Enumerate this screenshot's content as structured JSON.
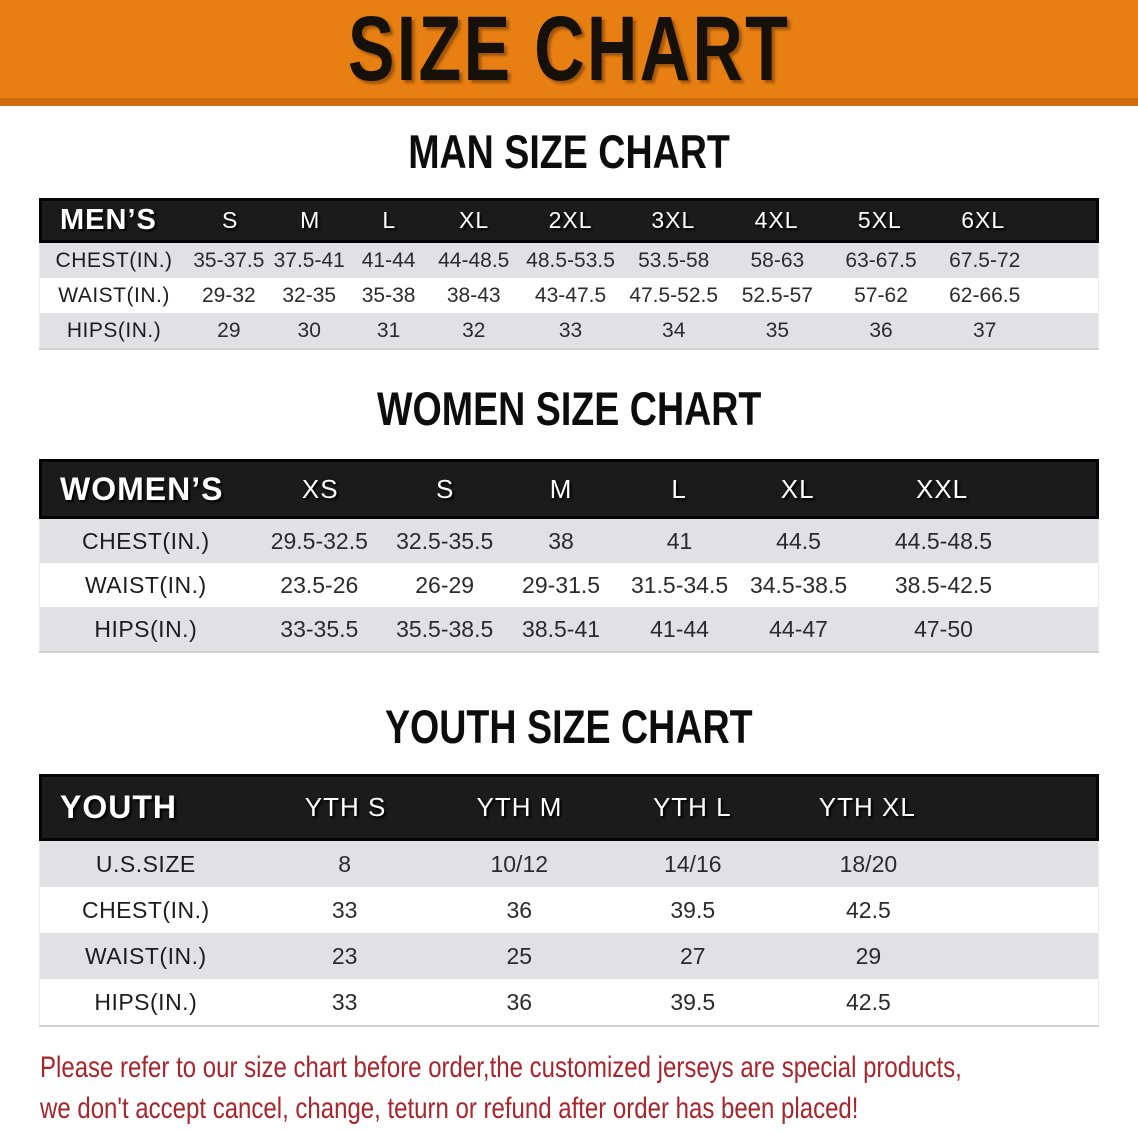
{
  "banner": {
    "title": "SIZE CHART"
  },
  "colors": {
    "banner_orange": "#E87F12",
    "banner_bottom_edge": "#CE6E10",
    "table_header_black": "#1B1B1B",
    "row_stripe_gray": "#E1E1E3",
    "disclaimer_red": "#A7262C"
  },
  "sections": [
    {
      "heading": "MAN SIZE CHART",
      "table_label": "MEN’S",
      "columns": [
        "S",
        "M",
        "L",
        "XL",
        "2XL",
        "3XL",
        "4XL",
        "5XL",
        "6XL"
      ],
      "rows": [
        {
          "label": "CHEST(IN.)",
          "values": [
            "35-37.5",
            "37.5-41",
            "41-44",
            "44-48.5",
            "48.5-53.5",
            "53.5-58",
            "58-63",
            "63-67.5",
            "67.5-72"
          ]
        },
        {
          "label": "WAIST(IN.)",
          "values": [
            "29-32",
            "32-35",
            "35-38",
            "38-43",
            "43-47.5",
            "47.5-52.5",
            "52.5-57",
            "57-62",
            "62-66.5"
          ]
        },
        {
          "label": "HIPS(IN.)",
          "values": [
            "29",
            "30",
            "31",
            "32",
            "33",
            "34",
            "35",
            "36",
            "37"
          ]
        }
      ]
    },
    {
      "heading": "WOMEN SIZE CHART",
      "table_label": "WOMEN’S",
      "columns": [
        "XS",
        "S",
        "M",
        "L",
        "XL",
        "XXL"
      ],
      "rows": [
        {
          "label": "CHEST(IN.)",
          "values": [
            "29.5-32.5",
            "32.5-35.5",
            "38",
            "41",
            "44.5",
            "44.5-48.5"
          ]
        },
        {
          "label": "WAIST(IN.)",
          "values": [
            "23.5-26",
            "26-29",
            "29-31.5",
            "31.5-34.5",
            "34.5-38.5",
            "38.5-42.5"
          ]
        },
        {
          "label": "HIPS(IN.)",
          "values": [
            "33-35.5",
            "35.5-38.5",
            "38.5-41",
            "41-44",
            "44-47",
            "47-50"
          ]
        }
      ]
    },
    {
      "heading": "YOUTH SIZE CHART",
      "table_label": "YOUTH",
      "columns": [
        "YTH S",
        "YTH M",
        "YTH L",
        "YTH XL"
      ],
      "rows": [
        {
          "label": "U.S.SIZE",
          "values": [
            "8",
            "10/12",
            "14/16",
            "18/20"
          ]
        },
        {
          "label": "CHEST(IN.)",
          "values": [
            "33",
            "36",
            "39.5",
            "42.5"
          ]
        },
        {
          "label": "WAIST(IN.)",
          "values": [
            "23",
            "25",
            "27",
            "29"
          ]
        },
        {
          "label": "HIPS(IN.)",
          "values": [
            "33",
            "36",
            "39.5",
            "42.5"
          ]
        }
      ]
    }
  ],
  "disclaimer": {
    "line1": "Please refer to our size chart before order,the customized jerseys are special products,",
    "line2": "we don't accept cancel, change, teturn or refund after order has been placed!"
  }
}
